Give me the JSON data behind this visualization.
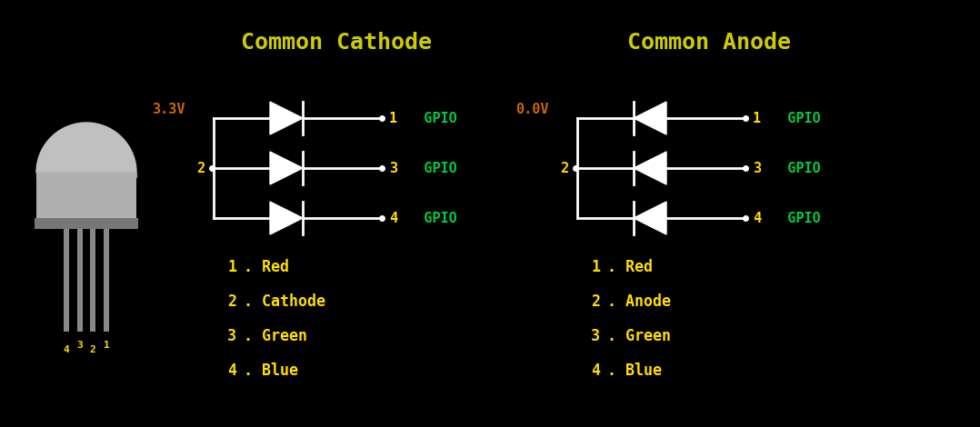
{
  "bg_color": "#000000",
  "title_color": "#cccc00",
  "yellow_color": "#ffdd00",
  "green_color": "#00cc44",
  "orange_color": "#cc6600",
  "white_color": "#ffffff",
  "gray_color": "#aaaaaa",
  "dark_gray": "#555555",
  "title_cc": "Common Cathode",
  "title_ca": "Common Anode",
  "cc_voltage": "3.3V",
  "ca_voltage": "0.0V",
  "cc_pin2": "2",
  "ca_pin2": "2",
  "cc_labels": [
    "1  GPIO",
    "3  GPIO",
    "4  GPIO"
  ],
  "ca_labels": [
    "1  GPIO",
    "3  GPIO",
    "4  GPIO"
  ],
  "cc_list": [
    "1. Red",
    "2. Cathode",
    "3. Green",
    "4. Blue"
  ],
  "ca_list": [
    "1. Red",
    "2. Anode",
    "3. Green",
    "4. Blue"
  ]
}
